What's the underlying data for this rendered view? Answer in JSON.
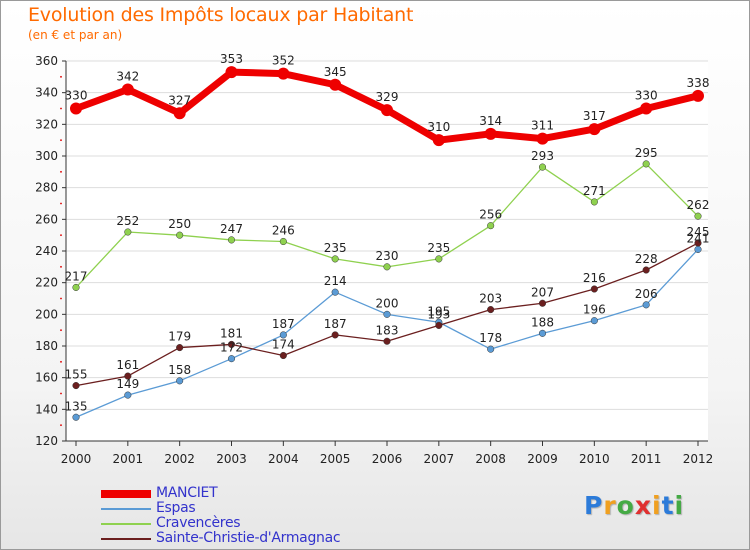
{
  "title": "Evolution des Impôts locaux par Habitant",
  "subtitle": "(en € et par an)",
  "logo": {
    "text": "Proxiti",
    "colors": [
      "#2c7bd9",
      "#f0a020",
      "#44aa44",
      "#e03030",
      "#f0a020",
      "#2c7bd9",
      "#44aa44"
    ]
  },
  "chart_data": {
    "type": "line",
    "x": [
      "2000",
      "2001",
      "2002",
      "2003",
      "2004",
      "2005",
      "2006",
      "2007",
      "2008",
      "2009",
      "2010",
      "2011",
      "2012"
    ],
    "ylim": [
      120,
      360
    ],
    "yticks": [
      "120",
      "140",
      "160",
      "180",
      "200",
      "220",
      "240",
      "260",
      "280",
      "300",
      "320",
      "340",
      "360"
    ],
    "grid": "horizontal",
    "legend": "bottom-left",
    "series": [
      {
        "name": "MANCIET",
        "color": "#ee0000",
        "values": [
          330,
          342,
          327,
          353,
          352,
          345,
          329,
          310,
          314,
          311,
          317,
          330,
          338
        ]
      },
      {
        "name": "Espas",
        "color": "#5b9bd5",
        "values": [
          135,
          149,
          158,
          172,
          187,
          214,
          200,
          195,
          178,
          188,
          196,
          206,
          241
        ]
      },
      {
        "name": "Cravencères",
        "color": "#8fd14f",
        "values": [
          217,
          252,
          250,
          247,
          246,
          235,
          230,
          235,
          256,
          293,
          271,
          295,
          262
        ]
      },
      {
        "name": "Sainte-Christie-d'Armagnac",
        "color": "#6b1f1f",
        "values": [
          155,
          161,
          179,
          181,
          174,
          187,
          183,
          193,
          203,
          207,
          216,
          228,
          245
        ]
      }
    ]
  }
}
